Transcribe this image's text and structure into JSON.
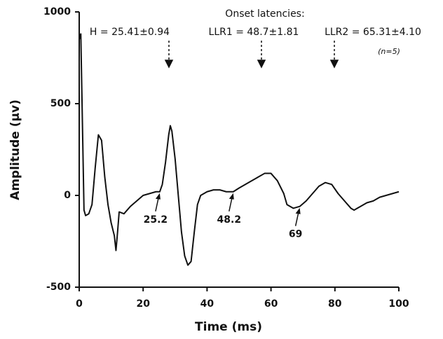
{
  "chart_data": {
    "type": "line",
    "xlabel": "Time (ms)",
    "ylabel": "Amplitude (µv)",
    "annotations": [
      "Onset latencies:",
      "H = 25.41±0.94",
      "LLR1 = 48.7±1.81",
      "LLR2 = 65.31±4.10",
      "(n=5)"
    ],
    "marked_points": [
      25.2,
      48.2,
      69
    ],
    "x": [
      0,
      0.5,
      1,
      1.5,
      2,
      3,
      4,
      5,
      6,
      7,
      8,
      9,
      10,
      11,
      11.5,
      12,
      12.5,
      14,
      16,
      18,
      20,
      22,
      24,
      25.2,
      26,
      27,
      28,
      28.5,
      29,
      30,
      31,
      32,
      33,
      34,
      35,
      36,
      37,
      38,
      40,
      42,
      44,
      46,
      48.2,
      50,
      52,
      54,
      56,
      58,
      60,
      62,
      64,
      65,
      67,
      69,
      71,
      73,
      75,
      77,
      79,
      81,
      83,
      85,
      86,
      88,
      90,
      92,
      94,
      96,
      98,
      100
    ],
    "series": [
      {
        "color": "#111111",
        "values": [
          850,
          880,
          400,
          -80,
          -110,
          -100,
          -50,
          150,
          330,
          300,
          100,
          -50,
          -150,
          -220,
          -300,
          -200,
          -90,
          -100,
          -60,
          -30,
          0,
          10,
          20,
          20,
          60,
          180,
          330,
          380,
          350,
          200,
          0,
          -200,
          -330,
          -380,
          -360,
          -200,
          -50,
          0,
          20,
          30,
          30,
          20,
          20,
          40,
          60,
          80,
          100,
          120,
          120,
          80,
          10,
          -50,
          -70,
          -60,
          -30,
          10,
          50,
          70,
          60,
          10,
          -30,
          -70,
          -80,
          -60,
          -40,
          -30,
          -10,
          0,
          10,
          20
        ]
      }
    ],
    "xlim": [
      0,
      100
    ],
    "xticks": [
      0,
      20,
      40,
      60,
      80,
      100
    ],
    "ylim": [
      -500,
      1000
    ],
    "yticks": [
      -500,
      0,
      500,
      1000
    ]
  }
}
